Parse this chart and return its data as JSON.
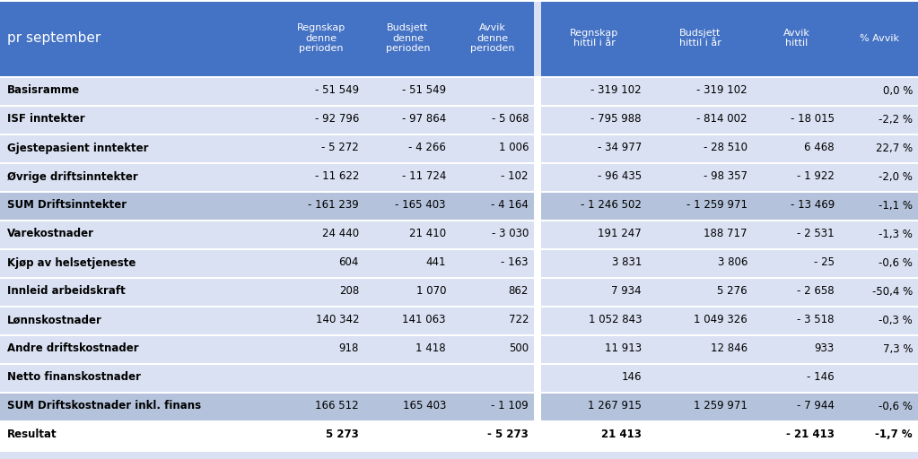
{
  "title_col": "pr september",
  "header_cols": [
    "Regnskap\ndenne\nperioden",
    "Budsjett\ndenne\nperioden",
    "Avvik\ndenne\nperioden",
    "Regnskap\nhittil i år",
    "Budsjett\nhittil i år",
    "Avvik\nhittil",
    "% Avvik"
  ],
  "rows": [
    {
      "label": "Basisramme",
      "sum_row": false,
      "result_row": false,
      "vals": [
        "- 51 549",
        "- 51 549",
        "",
        "- 319 102",
        "- 319 102",
        "",
        "0,0 %"
      ]
    },
    {
      "label": "ISF inntekter",
      "sum_row": false,
      "result_row": false,
      "vals": [
        "- 92 796",
        "- 97 864",
        "- 5 068",
        "- 795 988",
        "- 814 002",
        "- 18 015",
        "-2,2 %"
      ]
    },
    {
      "label": "Gjestepasient inntekter",
      "sum_row": false,
      "result_row": false,
      "vals": [
        "- 5 272",
        "- 4 266",
        "1 006",
        "- 34 977",
        "- 28 510",
        "6 468",
        "22,7 %"
      ]
    },
    {
      "label": "Øvrige driftsinntekter",
      "sum_row": false,
      "result_row": false,
      "vals": [
        "- 11 622",
        "- 11 724",
        "- 102",
        "- 96 435",
        "- 98 357",
        "- 1 922",
        "-2,0 %"
      ]
    },
    {
      "label": "SUM Driftsinntekter",
      "sum_row": true,
      "result_row": false,
      "vals": [
        "- 161 239",
        "- 165 403",
        "- 4 164",
        "- 1 246 502",
        "- 1 259 971",
        "- 13 469",
        "-1,1 %"
      ]
    },
    {
      "label": "Varekostnader",
      "sum_row": false,
      "result_row": false,
      "vals": [
        "24 440",
        "21 410",
        "- 3 030",
        "191 247",
        "188 717",
        "- 2 531",
        "-1,3 %"
      ]
    },
    {
      "label": "Kjøp av helsetjeneste",
      "sum_row": false,
      "result_row": false,
      "vals": [
        "604",
        "441",
        "- 163",
        "3 831",
        "3 806",
        "- 25",
        "-0,6 %"
      ]
    },
    {
      "label": "Innleid arbeidskraft",
      "sum_row": false,
      "result_row": false,
      "vals": [
        "208",
        "1 070",
        "862",
        "7 934",
        "5 276",
        "- 2 658",
        "-50,4 %"
      ]
    },
    {
      "label": "Lønnskostnader",
      "sum_row": false,
      "result_row": false,
      "vals": [
        "140 342",
        "141 063",
        "722",
        "1 052 843",
        "1 049 326",
        "- 3 518",
        "-0,3 %"
      ]
    },
    {
      "label": "Andre driftskostnader",
      "sum_row": false,
      "result_row": false,
      "vals": [
        "918",
        "1 418",
        "500",
        "11 913",
        "12 846",
        "933",
        "7,3 %"
      ]
    },
    {
      "label": "Netto finanskostnader",
      "sum_row": false,
      "result_row": false,
      "vals": [
        "",
        "",
        "",
        "146",
        "",
        "- 146",
        ""
      ]
    },
    {
      "label": "SUM Driftskostnader inkl. finans",
      "sum_row": true,
      "result_row": false,
      "vals": [
        "166 512",
        "165 403",
        "- 1 109",
        "1 267 915",
        "1 259 971",
        "- 7 944",
        "-0,6 %"
      ]
    },
    {
      "label": "Resultat",
      "sum_row": false,
      "result_row": true,
      "vals": [
        "5 273",
        "",
        "- 5 273",
        "21 413",
        "",
        "- 21 413",
        "-1,7 %"
      ]
    }
  ],
  "header_bg": "#4472C4",
  "header_text": "#FFFFFF",
  "row_bg_normal": "#D9E1F2",
  "row_bg_sum": "#B4C3DB",
  "row_bg_result": "#FFFFFF",
  "divider_bg": "#FFFFFF",
  "text_color": "#000000",
  "figsize": [
    10.23,
    5.12
  ],
  "dpi": 100
}
